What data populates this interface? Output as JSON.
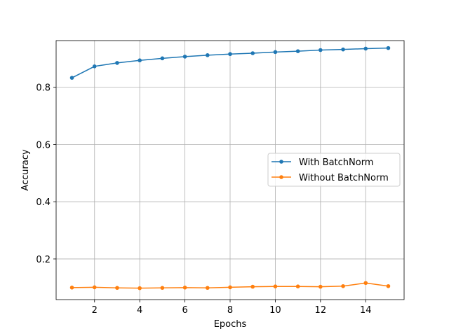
{
  "chart_data": {
    "type": "line",
    "xlabel": "Epochs",
    "ylabel": "Accuracy",
    "x": [
      1,
      2,
      3,
      4,
      5,
      6,
      7,
      8,
      9,
      10,
      11,
      12,
      13,
      14,
      15
    ],
    "xlim": [
      0.3,
      15.7
    ],
    "ylim": [
      0.058,
      0.963
    ],
    "xticks": [
      2,
      4,
      6,
      8,
      10,
      12,
      14
    ],
    "yticks": [
      0.2,
      0.4,
      0.6,
      0.8
    ],
    "xtick_labels": [
      "2",
      "4",
      "6",
      "8",
      "10",
      "12",
      "14"
    ],
    "ytick_labels": [
      "0.2",
      "0.4",
      "0.6",
      "0.8"
    ],
    "grid": true,
    "legend_position": "center-right",
    "series": [
      {
        "name": "With BatchNorm",
        "color": "#1f77b4",
        "marker": "dot",
        "values": [
          0.833,
          0.873,
          0.885,
          0.894,
          0.901,
          0.907,
          0.912,
          0.916,
          0.919,
          0.923,
          0.926,
          0.93,
          0.932,
          0.935,
          0.937
        ]
      },
      {
        "name": "Without BatchNorm",
        "color": "#ff7f0e",
        "marker": "dot",
        "values": [
          0.1,
          0.101,
          0.099,
          0.098,
          0.099,
          0.1,
          0.099,
          0.101,
          0.103,
          0.104,
          0.104,
          0.103,
          0.105,
          0.116,
          0.105
        ]
      }
    ]
  }
}
